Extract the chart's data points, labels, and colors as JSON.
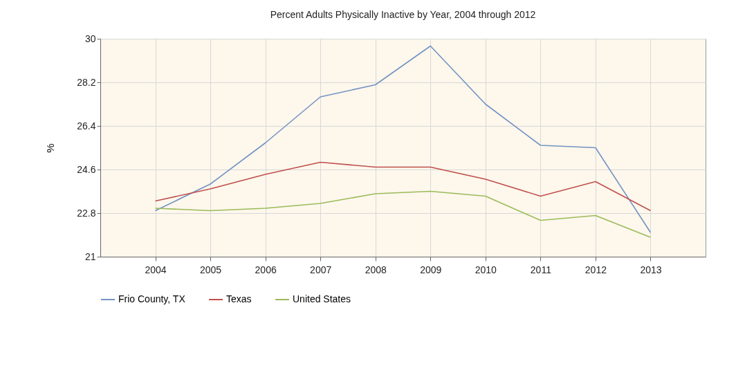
{
  "chart_data": {
    "type": "line",
    "title": "Percent Adults Physically Inactive by Year, 2004 through 2012",
    "ylabel": "%",
    "x": [
      2004,
      2005,
      2006,
      2007,
      2008,
      2009,
      2010,
      2011,
      2012,
      2013
    ],
    "series": [
      {
        "name": "Frio County, TX",
        "color": "#7393c4",
        "values": [
          22.9,
          24.0,
          25.7,
          27.6,
          28.1,
          29.7,
          27.3,
          25.6,
          25.5,
          22.0
        ]
      },
      {
        "name": "Texas",
        "color": "#c0504d",
        "values": [
          23.3,
          23.8,
          24.4,
          24.9,
          24.7,
          24.7,
          24.2,
          23.5,
          24.1,
          22.9
        ]
      },
      {
        "name": "United States",
        "color": "#9bbb59",
        "values": [
          23.0,
          22.9,
          23.0,
          23.2,
          23.6,
          23.7,
          23.5,
          22.5,
          22.7,
          21.8
        ]
      }
    ],
    "xlim": [
      2003,
      2014
    ],
    "xticks": [
      2004,
      2005,
      2006,
      2007,
      2008,
      2009,
      2010,
      2011,
      2012,
      2013
    ],
    "ylim": [
      21,
      30
    ],
    "yticks": [
      21,
      22.8,
      24.6,
      26.4,
      28.2,
      30
    ],
    "grid": true,
    "legend": "bottom",
    "marker": "none",
    "line_style": "solid"
  }
}
